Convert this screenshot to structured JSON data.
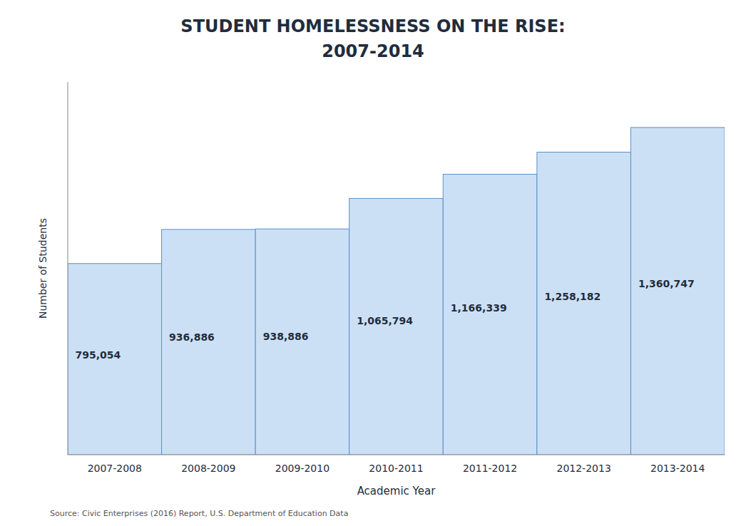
{
  "chart_data": {
    "type": "bar",
    "title": "STUDENT HOMELESSNESS ON THE RISE:",
    "subtitle": "2007-2014",
    "x_label": "Academic Year",
    "y_label": "Number of Students",
    "source": "Source: Civic Enterprises (2016) Report, U.S. Department of Education Data",
    "categories": [
      "2007-2008",
      "2008-2009",
      "2009-2010",
      "2010-2011",
      "2011-2012",
      "2012-2013",
      "2013-2014"
    ],
    "values": [
      795054,
      936886,
      938886,
      1065794,
      1166339,
      1258182,
      1360747
    ],
    "value_labels": [
      "795,054",
      "936,886",
      "938,886",
      "1,065,794",
      "1,166,339",
      "1,258,182",
      "1,360,747"
    ],
    "data_labels": true,
    "color": "#cce0f5",
    "ylim": [
      0,
      1550000
    ],
    "tick_labels": "x",
    "grid": false
  }
}
